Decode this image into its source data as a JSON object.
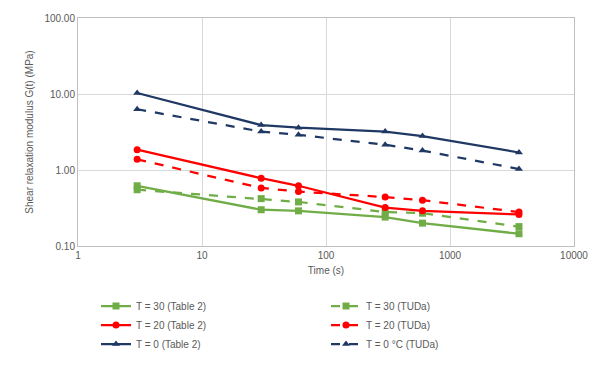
{
  "chart_data": {
    "type": "line",
    "x_label": "Time (s)",
    "y_label": "Shear relaxation modulus G(t) (MPa)",
    "log": true,
    "grid": true,
    "legend": "bottom",
    "xlim": [
      1,
      10000
    ],
    "xticks": [
      1,
      10,
      100,
      1000,
      10000
    ],
    "ylim": [
      0.1,
      100
    ],
    "yticks": [
      {
        "value": 0.1,
        "label": "0.10"
      },
      {
        "value": 1,
        "label": "1.00"
      },
      {
        "value": 10,
        "label": "10.00"
      },
      {
        "value": 100,
        "label": "100.00"
      }
    ],
    "x": [
      3,
      30,
      60,
      300,
      600,
      3600
    ],
    "series": [
      {
        "name": "T = 30 (Table 2)",
        "color": "#70ad47",
        "marker": "square",
        "line_style": "solid",
        "values": [
          0.62,
          0.3,
          0.29,
          0.24,
          0.2,
          0.145
        ]
      },
      {
        "name": "T = 30 (TUDa)",
        "color": "#70ad47",
        "marker": "square",
        "line_style": "dash",
        "values": [
          0.55,
          0.42,
          0.38,
          0.28,
          0.27,
          0.18
        ]
      },
      {
        "name": "T = 20 (Table 2)",
        "color": "#ff0000",
        "marker": "circle",
        "line_style": "solid",
        "values": [
          1.85,
          0.78,
          0.62,
          0.32,
          0.29,
          0.26
        ]
      },
      {
        "name": "T = 20 (TUDa)",
        "color": "#ff0000",
        "marker": "circle",
        "line_style": "dash",
        "values": [
          1.38,
          0.58,
          0.52,
          0.44,
          0.4,
          0.28
        ]
      },
      {
        "name": "T = 0 (Table 2)",
        "color": "#203864",
        "marker": "triangle-up",
        "line_style": "solid",
        "values": [
          10.3,
          3.9,
          3.6,
          3.2,
          2.8,
          1.7
        ]
      },
      {
        "name": "T = 0 °C (TUDa)",
        "color": "#203864",
        "marker": "triangle-up",
        "line_style": "dash",
        "values": [
          6.3,
          3.2,
          2.9,
          2.15,
          1.8,
          1.03
        ]
      }
    ]
  }
}
